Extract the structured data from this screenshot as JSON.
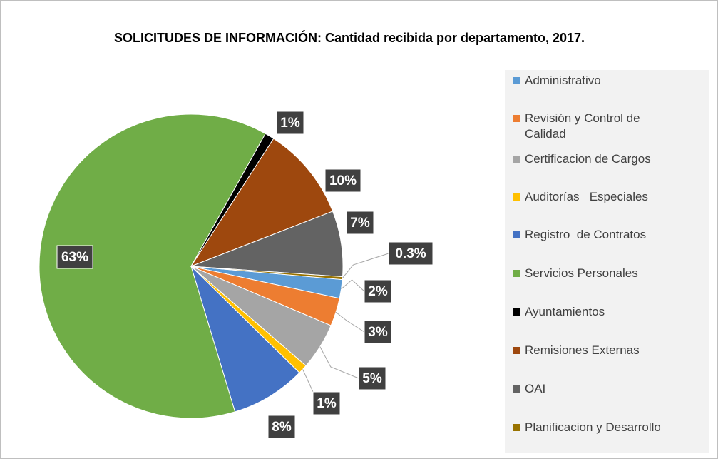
{
  "chart_data": {
    "type": "pie",
    "title": "SOLICITUDES DE INFORMACIÓN: Cantidad recibida por departamento, 2017.",
    "categories": [
      "Administrativo",
      "Revisión y Control de Calidad",
      "Certificacion de Cargos",
      "Auditorías   Especiales",
      "Registro  de Contratos",
      "Servicios Personales",
      "Ayuntamientos",
      "Remisiones Externas",
      "OAI",
      "Planificacion y Desarrollo"
    ],
    "values": [
      2,
      3,
      5,
      1,
      8,
      63,
      1,
      10,
      7,
      0.3
    ],
    "value_labels": [
      "2%",
      "3%",
      "5%",
      "1%",
      "8%",
      "63%",
      "1%",
      "10%",
      "7%",
      "0.3%"
    ],
    "colors": [
      "#5b9bd5",
      "#ed7d31",
      "#a5a5a5",
      "#ffc000",
      "#4472c4",
      "#70ad47",
      "#000000",
      "#9e480e",
      "#636363",
      "#997300"
    ],
    "legend": "right"
  }
}
